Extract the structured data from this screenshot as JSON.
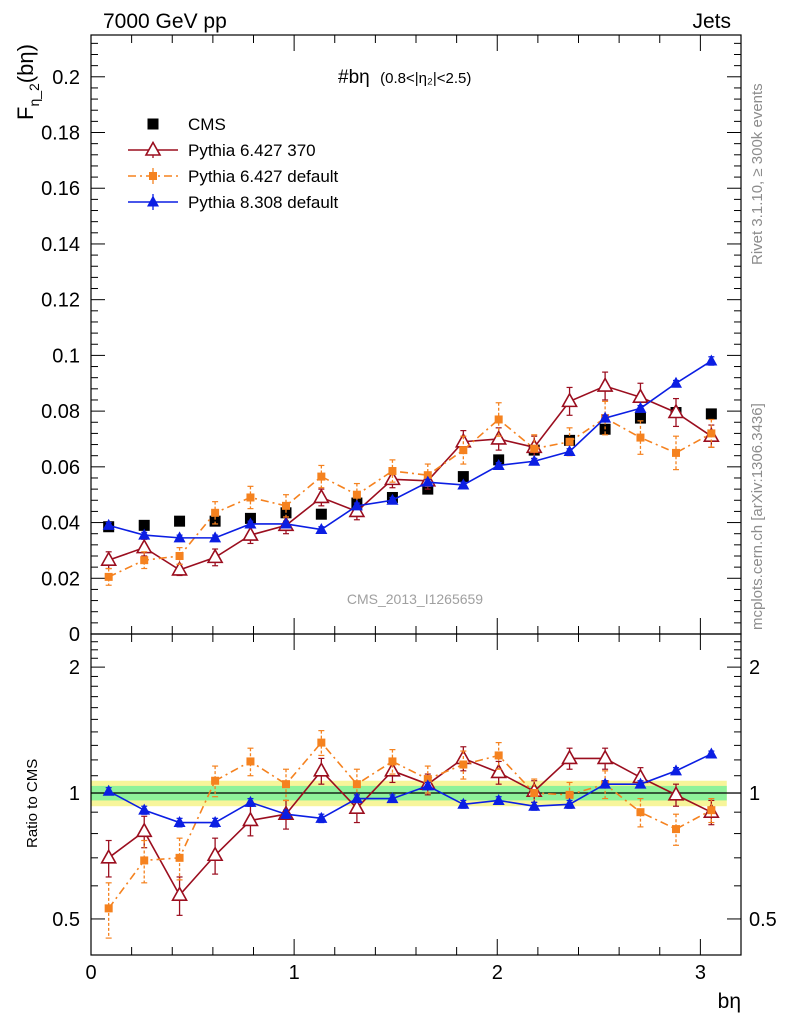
{
  "header": {
    "left": "7000 GeV pp",
    "right": "Jets"
  },
  "side_text": {
    "rivet": "Rivet 3.1.10, ≥ 300k events",
    "mcplots": "mcplots.cern.ch [arXiv:1306.3436]"
  },
  "plot_title": "#bη",
  "plot_subtitle": "(0.8<|η₂|<2.5)",
  "watermark": "CMS_2013_I1265659",
  "top_ylabel": "F_η_2(bη)",
  "ratio_ylabel": "Ratio to CMS",
  "xlabel": "bη",
  "chart_data": [
    {
      "type": "scatter",
      "panel": "main",
      "ylim": [
        0,
        0.215
      ],
      "xlim": [
        0,
        3.2
      ],
      "yticks": [
        "0",
        "0.02",
        "0.04",
        "0.06",
        "0.08",
        "0.1",
        "0.12",
        "0.14",
        "0.16",
        "0.18",
        "0.2"
      ],
      "x": [
        0.087,
        0.262,
        0.436,
        0.611,
        0.785,
        0.96,
        1.134,
        1.309,
        1.484,
        1.658,
        1.833,
        2.007,
        2.182,
        2.356,
        2.531,
        2.705,
        2.88,
        3.054
      ],
      "legend_position": "top-left",
      "series": [
        {
          "name": "CMS",
          "color": "#000000",
          "marker": "square",
          "line": "none",
          "values": [
            0.0385,
            0.039,
            0.0405,
            0.0405,
            0.0415,
            0.0435,
            0.043,
            0.047,
            0.049,
            0.052,
            0.0565,
            0.0625,
            0.066,
            0.0695,
            0.0735,
            0.0775,
            0.0795,
            0.079
          ],
          "errors": [
            0.001,
            0.001,
            0.001,
            0.001,
            0.001,
            0.001,
            0.001,
            0.001,
            0.001,
            0.001,
            0.001,
            0.001,
            0.001,
            0.001,
            0.001,
            0.001,
            0.001,
            0.001
          ]
        },
        {
          "name": "Pythia 6.427 370",
          "color": "#9b0e1f",
          "marker": "triangle-open",
          "line": "solid",
          "values": [
            0.0265,
            0.031,
            0.023,
            0.0275,
            0.0355,
            0.039,
            0.049,
            0.044,
            0.0555,
            0.055,
            0.069,
            0.07,
            0.067,
            0.0835,
            0.089,
            0.085,
            0.0795,
            0.071
          ],
          "errors": [
            0.003,
            0.003,
            0.002,
            0.003,
            0.003,
            0.003,
            0.003,
            0.003,
            0.003,
            0.003,
            0.004,
            0.004,
            0.004,
            0.005,
            0.005,
            0.005,
            0.005,
            0.004
          ]
        },
        {
          "name": "Pythia 6.427 default",
          "color": "#f5821f",
          "marker": "square-small",
          "line": "dashdot",
          "values": [
            0.0205,
            0.0265,
            0.028,
            0.0435,
            0.049,
            0.046,
            0.0565,
            0.05,
            0.0585,
            0.057,
            0.066,
            0.077,
            0.0665,
            0.069,
            0.0775,
            0.0705,
            0.065,
            0.072
          ],
          "errors": [
            0.003,
            0.003,
            0.003,
            0.004,
            0.004,
            0.004,
            0.004,
            0.004,
            0.004,
            0.004,
            0.005,
            0.006,
            0.005,
            0.005,
            0.006,
            0.006,
            0.006,
            0.005
          ]
        },
        {
          "name": "Pythia 8.308 default",
          "color": "#0b1ee3",
          "marker": "triangle",
          "line": "solid",
          "values": [
            0.039,
            0.0355,
            0.0345,
            0.0345,
            0.0395,
            0.0395,
            0.0375,
            0.046,
            0.048,
            0.0545,
            0.0535,
            0.0605,
            0.062,
            0.0655,
            0.0775,
            0.081,
            0.09,
            0.098
          ],
          "errors": [
            0.001,
            0.001,
            0.001,
            0.001,
            0.001,
            0.001,
            0.001,
            0.001,
            0.001,
            0.001,
            0.001,
            0.001,
            0.001,
            0.001,
            0.001,
            0.001,
            0.001,
            0.0015
          ]
        }
      ]
    },
    {
      "type": "scatter",
      "panel": "ratio",
      "scale": "log",
      "ylim": [
        0.41,
        2.4
      ],
      "xlim": [
        0,
        3.2
      ],
      "yticks": [
        "0.5",
        "1",
        "2"
      ],
      "xticks": [
        "0",
        "1",
        "2",
        "3"
      ],
      "x": [
        0.087,
        0.262,
        0.436,
        0.611,
        0.785,
        0.96,
        1.134,
        1.309,
        1.484,
        1.658,
        1.833,
        2.007,
        2.182,
        2.356,
        2.531,
        2.705,
        2.88,
        3.054
      ],
      "band_inner": 0.04,
      "band_outer": 0.07,
      "series": [
        {
          "name": "Pythia 6.427 370",
          "color": "#9b0e1f",
          "marker": "triangle-open",
          "line": "solid",
          "values": [
            0.7,
            0.81,
            0.57,
            0.71,
            0.86,
            0.89,
            1.13,
            0.92,
            1.13,
            1.05,
            1.21,
            1.12,
            1.01,
            1.21,
            1.21,
            1.09,
            0.99,
            0.9
          ],
          "errors": [
            0.07,
            0.07,
            0.06,
            0.07,
            0.07,
            0.07,
            0.08,
            0.07,
            0.07,
            0.06,
            0.08,
            0.07,
            0.06,
            0.07,
            0.07,
            0.06,
            0.06,
            0.06
          ]
        },
        {
          "name": "Pythia 6.427 default",
          "color": "#f5821f",
          "marker": "square-small",
          "line": "dashdot",
          "values": [
            0.53,
            0.69,
            0.7,
            1.07,
            1.19,
            1.05,
            1.32,
            1.05,
            1.19,
            1.08,
            1.17,
            1.23,
            1.0,
            0.99,
            1.05,
            0.9,
            0.82,
            0.91
          ],
          "errors": [
            0.08,
            0.08,
            0.08,
            0.09,
            0.09,
            0.09,
            0.09,
            0.09,
            0.08,
            0.08,
            0.09,
            0.09,
            0.08,
            0.07,
            0.08,
            0.07,
            0.07,
            0.06
          ]
        },
        {
          "name": "Pythia 8.308 default",
          "color": "#0b1ee3",
          "marker": "triangle",
          "line": "solid",
          "values": [
            1.01,
            0.91,
            0.85,
            0.85,
            0.95,
            0.89,
            0.87,
            0.97,
            0.97,
            1.04,
            0.94,
            0.96,
            0.93,
            0.94,
            1.05,
            1.05,
            1.13,
            1.24
          ],
          "errors": [
            0.02,
            0.02,
            0.02,
            0.02,
            0.02,
            0.02,
            0.02,
            0.02,
            0.02,
            0.02,
            0.02,
            0.02,
            0.02,
            0.02,
            0.02,
            0.02,
            0.02,
            0.02
          ]
        }
      ]
    }
  ]
}
